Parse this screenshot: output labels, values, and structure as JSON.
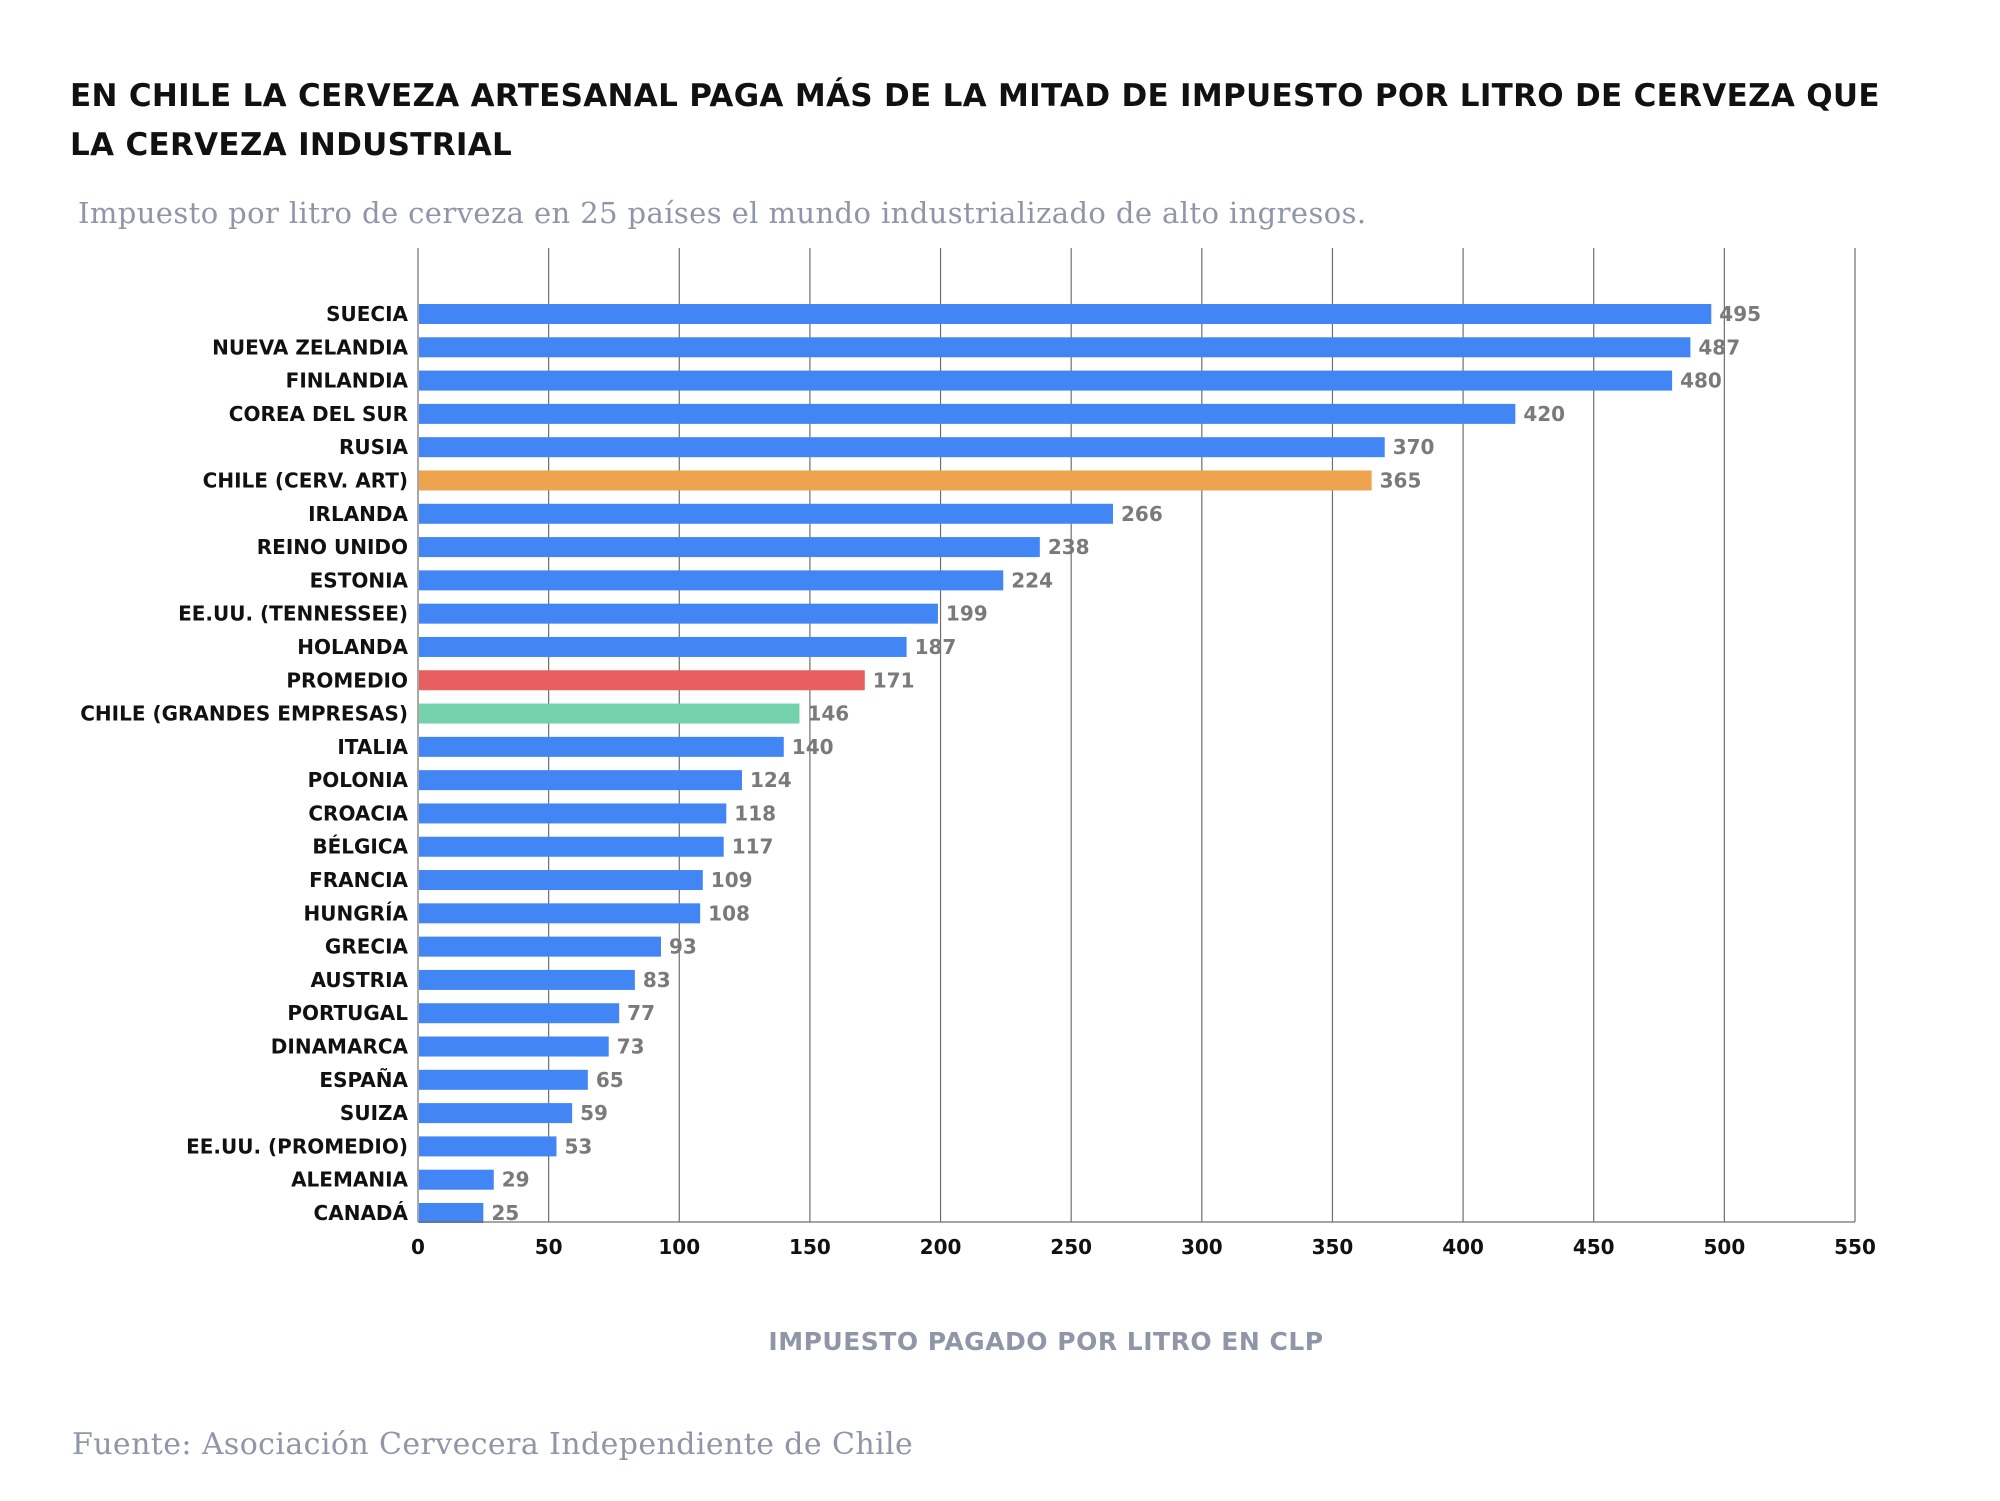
{
  "chart_data": {
    "type": "bar",
    "orientation": "horizontal",
    "title": "EN CHILE LA CERVEZA ARTESANAL PAGA MÁS DE LA MITAD DE IMPUESTO POR LITRO DE CERVEZA QUE LA CERVEZA INDUSTRIAL",
    "subtitle": "Impuesto por litro de cerveza en 25 países el mundo industrializado de alto ingresos.",
    "xlabel": "IMPUESTO PAGADO POR LITRO EN CLP",
    "ylabel": "",
    "xlim": [
      0,
      550
    ],
    "xticks": [
      0,
      50,
      100,
      150,
      200,
      250,
      300,
      350,
      400,
      450,
      500,
      550
    ],
    "grid": true,
    "categories": [
      "SUECIA",
      "NUEVA ZELANDIA",
      "FINLANDIA",
      "COREA DEL SUR",
      "RUSIA",
      "CHILE (CERV. ART)",
      "IRLANDA",
      "REINO UNIDO",
      "ESTONIA",
      "EE.UU. (TENNESSEE)",
      "HOLANDA",
      "PROMEDIO",
      "CHILE (GRANDES EMPRESAS)",
      "ITALIA",
      "POLONIA",
      "CROACIA",
      "BÉLGICA",
      "FRANCIA",
      "HUNGRÍA",
      "GRECIA",
      "AUSTRIA",
      "PORTUGAL",
      "DINAMARCA",
      "ESPAÑA",
      "SUIZA",
      "EE.UU. (PROMEDIO)",
      "ALEMANIA",
      "CANADÁ"
    ],
    "values": [
      495,
      487,
      480,
      420,
      370,
      365,
      266,
      238,
      224,
      199,
      187,
      171,
      146,
      140,
      124,
      118,
      117,
      109,
      108,
      93,
      83,
      77,
      73,
      65,
      59,
      53,
      29,
      25
    ],
    "colors": {
      "default": "#4285f4",
      "highlight": "#eea44f",
      "average": "#e95f5f",
      "industrial": "#73d1ab",
      "grid": "#6f6f6f",
      "axis": "#6f6f6f"
    },
    "bar_color_keys": [
      "default",
      "default",
      "default",
      "default",
      "default",
      "highlight",
      "default",
      "default",
      "default",
      "default",
      "default",
      "average",
      "industrial",
      "default",
      "default",
      "default",
      "default",
      "default",
      "default",
      "default",
      "default",
      "default",
      "default",
      "default",
      "default",
      "default",
      "default",
      "default"
    ]
  },
  "source": "Fuente: Asociación Cervecera Independiente de Chile"
}
